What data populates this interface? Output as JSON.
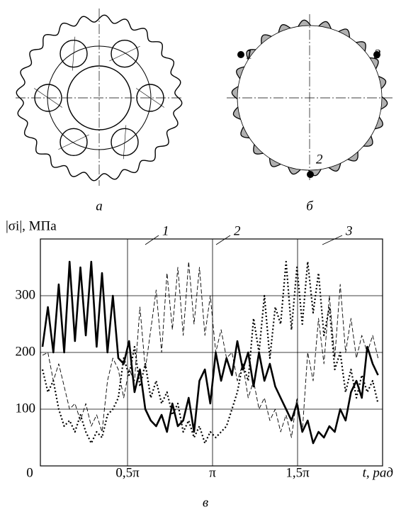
{
  "chart_data": {
    "type": "line",
    "ylabel": "|σi|, МПа",
    "xlabel": "t, рад",
    "xlim": [
      0,
      6.2832
    ],
    "ylim": [
      0,
      400
    ],
    "xticks": [
      0,
      {
        "value": 1.5708,
        "label": "0,5π"
      },
      {
        "value": 3.1416,
        "label": "π"
      },
      {
        "value": 4.7124,
        "label": "1,5π"
      }
    ],
    "yticks": [
      100,
      200,
      300
    ],
    "grid": true,
    "x": [
      0,
      0.1,
      0.2,
      0.3,
      0.4,
      0.5,
      0.6,
      0.7,
      0.8,
      0.9,
      1.0,
      1.1,
      1.2,
      1.3,
      1.4,
      1.5,
      1.6,
      1.7,
      1.8,
      1.9,
      2.0,
      2.1,
      2.2,
      2.3,
      2.4,
      2.5,
      2.6,
      2.7,
      2.8,
      2.9,
      3.0,
      3.1,
      3.2,
      3.3,
      3.4,
      3.5,
      3.6,
      3.7,
      3.8,
      3.9,
      4.0,
      4.1,
      4.2,
      4.3,
      4.4,
      4.5,
      4.6,
      4.7,
      4.8,
      4.9,
      5.0,
      5.1,
      5.2,
      5.3,
      5.4,
      5.5,
      5.6,
      5.7,
      5.8,
      5.9,
      6.0,
      6.1,
      6.2
    ],
    "series": [
      {
        "name": "1",
        "color": "#000000",
        "style": "solid",
        "values": [
          210,
          280,
          200,
          320,
          200,
          360,
          220,
          350,
          230,
          360,
          210,
          340,
          200,
          300,
          190,
          180,
          220,
          130,
          170,
          100,
          80,
          70,
          90,
          60,
          110,
          70,
          80,
          120,
          60,
          150,
          170,
          110,
          200,
          150,
          190,
          160,
          220,
          170,
          200,
          140,
          200,
          150,
          180,
          140,
          120,
          100,
          80,
          110,
          60,
          80,
          40,
          60,
          50,
          70,
          60,
          100,
          80,
          130,
          150,
          120,
          210,
          180,
          160
        ]
      },
      {
        "name": "2",
        "color": "#000000",
        "style": "dashed",
        "values": [
          195,
          200,
          150,
          180,
          140,
          100,
          110,
          80,
          110,
          70,
          90,
          60,
          150,
          190,
          170,
          120,
          170,
          150,
          280,
          170,
          240,
          310,
          200,
          340,
          240,
          350,
          230,
          360,
          250,
          350,
          230,
          300,
          200,
          240,
          190,
          200,
          150,
          180,
          120,
          150,
          100,
          120,
          80,
          100,
          60,
          90,
          50,
          120,
          60,
          200,
          150,
          260,
          180,
          300,
          190,
          320,
          200,
          260,
          190,
          230,
          200,
          230,
          190
        ]
      },
      {
        "name": "3",
        "color": "#000000",
        "style": "dotted",
        "values": [
          170,
          130,
          150,
          100,
          70,
          80,
          60,
          90,
          60,
          40,
          60,
          50,
          90,
          100,
          120,
          190,
          160,
          210,
          140,
          180,
          120,
          150,
          110,
          130,
          90,
          110,
          60,
          80,
          50,
          70,
          40,
          60,
          50,
          60,
          70,
          100,
          130,
          180,
          150,
          260,
          200,
          300,
          190,
          280,
          250,
          360,
          240,
          350,
          250,
          360,
          270,
          340,
          230,
          280,
          170,
          200,
          130,
          170,
          120,
          160,
          130,
          150,
          110
        ]
      }
    ]
  },
  "panel_labels": [
    "а",
    "б",
    "в"
  ],
  "ring_points": [
    "1",
    "2",
    "3"
  ]
}
